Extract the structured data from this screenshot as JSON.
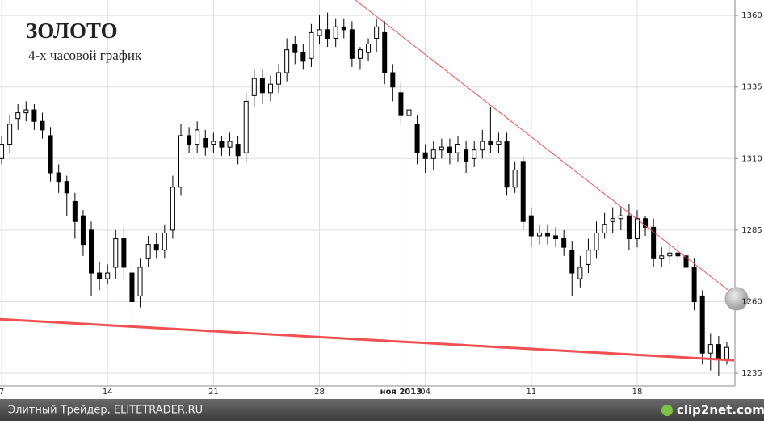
{
  "chart_data": {
    "type": "candlestick",
    "title": "ЗОЛОТО",
    "subtitle": "4-х часовой график",
    "categories": [
      "7",
      null,
      null,
      null,
      null,
      null,
      null,
      null,
      null,
      null,
      null,
      null,
      null,
      "14",
      null,
      null,
      null,
      null,
      null,
      null,
      null,
      null,
      null,
      null,
      null,
      null,
      "21",
      null,
      null,
      null,
      null,
      null,
      null,
      null,
      null,
      null,
      null,
      null,
      null,
      "28",
      null,
      null,
      null,
      null,
      null,
      null,
      null,
      null,
      null,
      "ноя 2013",
      null,
      null,
      "04",
      null,
      null,
      null,
      null,
      null,
      null,
      null,
      null,
      null,
      null,
      null,
      null,
      "11",
      null,
      null,
      null,
      null,
      null,
      null,
      null,
      null,
      null,
      null,
      null,
      null,
      "18",
      null,
      null,
      null,
      null,
      null,
      null,
      null,
      null,
      null,
      null,
      null
    ],
    "open": [
      1310,
      1315,
      1324,
      1326,
      1327,
      1323,
      1318,
      1305,
      1302,
      1295,
      1290,
      1285,
      1270,
      1268,
      1272,
      1282,
      1270,
      1262,
      1275,
      1280,
      1278,
      1285,
      1300,
      1318,
      1315,
      1317,
      1315,
      1316,
      1314,
      1315,
      1312,
      1332,
      1338,
      1333,
      1336,
      1340,
      1350,
      1347,
      1345,
      1353,
      1355,
      1352,
      1356,
      1355,
      1345,
      1347,
      1352,
      1354,
      1340,
      1333,
      1325,
      1322,
      1312,
      1310,
      1313,
      1314,
      1312,
      1313,
      1310,
      1313,
      1316,
      1315,
      1316,
      1300,
      1309,
      1290,
      1283,
      1284,
      1283,
      1282,
      1278,
      1268,
      1273,
      1278,
      1284,
      1288,
      1289,
      1290,
      1282,
      1289,
      1286,
      1275,
      1276,
      1277,
      1276,
      1272,
      1262,
      1242,
      1245,
      1240
    ],
    "high": [
      1318,
      1325,
      1329,
      1330,
      1329,
      1326,
      1321,
      1308,
      1304,
      1298,
      1292,
      1288,
      1274,
      1273,
      1285,
      1286,
      1273,
      1275,
      1283,
      1284,
      1287,
      1304,
      1322,
      1321,
      1323,
      1320,
      1319,
      1318,
      1319,
      1318,
      1333,
      1341,
      1341,
      1339,
      1343,
      1352,
      1353,
      1350,
      1357,
      1360,
      1361,
      1359,
      1359,
      1358,
      1349,
      1352,
      1359,
      1358,
      1343,
      1337,
      1331,
      1325,
      1315,
      1316,
      1317,
      1317,
      1318,
      1316,
      1316,
      1320,
      1328,
      1319,
      1319,
      1309,
      1311,
      1293,
      1287,
      1287,
      1286,
      1285,
      1281,
      1276,
      1282,
      1288,
      1291,
      1293,
      1293,
      1294,
      1292,
      1290,
      1289,
      1279,
      1280,
      1280,
      1279,
      1275,
      1264,
      1249,
      1248,
      1246
    ],
    "low": [
      1308,
      1312,
      1320,
      1323,
      1320,
      1317,
      1302,
      1298,
      1290,
      1282,
      1276,
      1262,
      1264,
      1266,
      1268,
      1268,
      1254,
      1258,
      1272,
      1275,
      1275,
      1282,
      1297,
      1312,
      1312,
      1311,
      1312,
      1311,
      1311,
      1308,
      1309,
      1328,
      1329,
      1330,
      1333,
      1337,
      1343,
      1341,
      1342,
      1350,
      1349,
      1349,
      1352,
      1342,
      1341,
      1344,
      1347,
      1336,
      1330,
      1322,
      1320,
      1308,
      1305,
      1306,
      1310,
      1308,
      1309,
      1305,
      1307,
      1310,
      1312,
      1312,
      1297,
      1298,
      1285,
      1279,
      1280,
      1280,
      1279,
      1276,
      1262,
      1265,
      1270,
      1275,
      1282,
      1284,
      1285,
      1278,
      1279,
      1283,
      1272,
      1272,
      1273,
      1273,
      1268,
      1257,
      1238,
      1236,
      1234,
      1238
    ],
    "close": [
      1315,
      1322,
      1326,
      1327,
      1323,
      1320,
      1305,
      1302,
      1298,
      1288,
      1280,
      1270,
      1268,
      1270,
      1282,
      1272,
      1260,
      1272,
      1280,
      1278,
      1284,
      1300,
      1318,
      1315,
      1320,
      1314,
      1316,
      1314,
      1316,
      1311,
      1330,
      1338,
      1333,
      1336,
      1340,
      1348,
      1347,
      1344,
      1354,
      1355,
      1352,
      1356,
      1355,
      1345,
      1348,
      1350,
      1356,
      1340,
      1335,
      1325,
      1327,
      1312,
      1310,
      1313,
      1314,
      1312,
      1315,
      1309,
      1313,
      1316,
      1315,
      1316,
      1300,
      1306,
      1288,
      1283,
      1284,
      1283,
      1282,
      1279,
      1270,
      1272,
      1278,
      1284,
      1287,
      1289,
      1290,
      1282,
      1289,
      1286,
      1275,
      1276,
      1277,
      1276,
      1272,
      1260,
      1242,
      1245,
      1240,
      1244
    ],
    "ylim": [
      1230.5,
      1365.4
    ],
    "yticks": [
      1235,
      1260,
      1285,
      1310,
      1335,
      1360
    ],
    "grid": true,
    "trendlines": [
      {
        "x": [
          43.4,
          89.9
        ],
        "y": [
          1365.4,
          1262.4
        ],
        "color": "#f05050",
        "width": 1
      },
      {
        "x": [
          -0.5,
          89.9
        ],
        "y": [
          1253.9,
          1239.5
        ],
        "color": "#f05050",
        "width": 3
      }
    ],
    "price_marker": 1261
  },
  "footer": {
    "left": "Элитный Трейдер, ELITETRADER.RU",
    "right": "clip2net.com"
  }
}
